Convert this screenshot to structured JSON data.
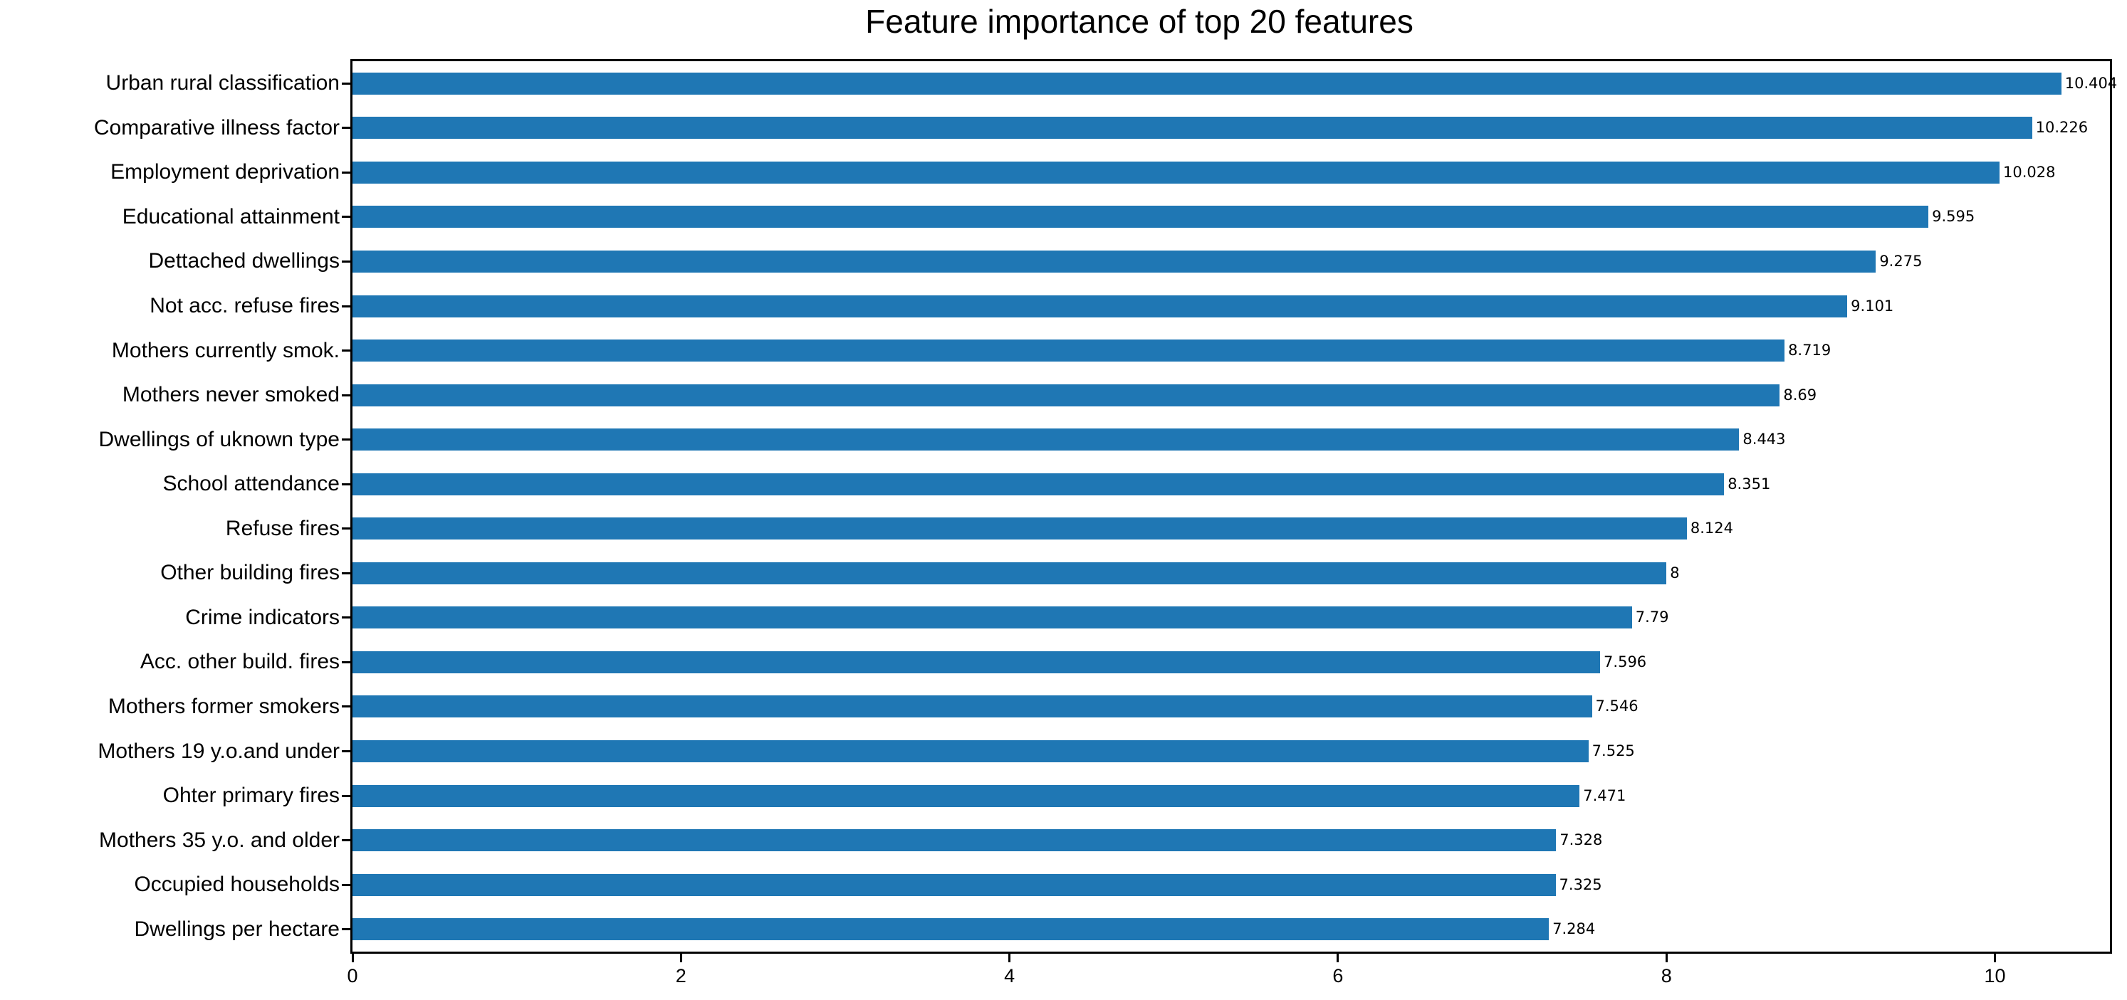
{
  "chart_data": {
    "type": "bar",
    "orientation": "horizontal",
    "title": "Feature importance of top 20 features",
    "categories": [
      "Urban rural classification",
      "Comparative illness factor",
      "Employment deprivation",
      "Educational attainment",
      "Dettached dwellings",
      "Not acc. refuse fires",
      "Mothers currently smok.",
      "Mothers never smoked",
      "Dwellings of uknown type",
      "School attendance",
      "Refuse fires",
      "Other building fires",
      "Crime indicators",
      "Acc. other build. fires",
      "Mothers former smokers",
      "Mothers 19 y.o.and under",
      "Ohter primary fires",
      "Mothers 35 y.o. and older",
      "Occupied households",
      "Dwellings per hectare"
    ],
    "values": [
      10.404,
      10.226,
      10.028,
      9.595,
      9.275,
      9.101,
      8.719,
      8.69,
      8.443,
      8.351,
      8.124,
      8,
      7.79,
      7.596,
      7.546,
      7.525,
      7.471,
      7.328,
      7.325,
      7.284
    ],
    "value_labels": [
      "10.404",
      "10.226",
      "10.028",
      "9.595",
      "9.275",
      "9.101",
      "8.719",
      "8.69",
      "8.443",
      "8.351",
      "8.124",
      "8",
      "7.79",
      "7.596",
      "7.546",
      "7.525",
      "7.471",
      "7.328",
      "7.325",
      "7.284"
    ],
    "xlabel": "",
    "ylabel": "",
    "xlim": [
      0,
      10.7
    ],
    "xtick_labels": [
      "0",
      "2",
      "4",
      "6",
      "8",
      "10"
    ],
    "xtick_values": [
      0,
      2,
      4,
      6,
      8,
      10
    ],
    "grid": false,
    "legend": "none",
    "bar_color": "#1f77b4",
    "frame_color": "#000000",
    "text_color": "#000000"
  }
}
